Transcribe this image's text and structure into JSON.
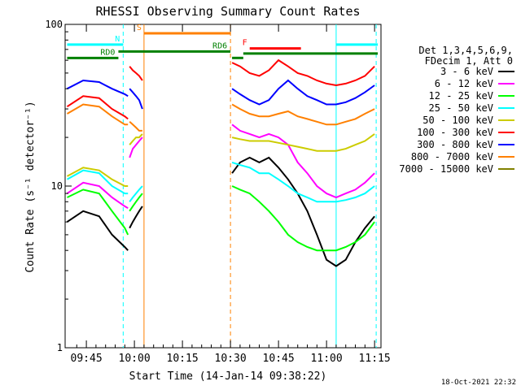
{
  "chart_data": {
    "type": "line",
    "title": "RHESSI Observing Summary Count Rates",
    "xlabel": "Start Time (14-Jan-14 09:38:22)",
    "ylabel": "Count Rate (s⁻¹ detector⁻¹)",
    "yscale": "log",
    "ylim": [
      1,
      100
    ],
    "xlim": [
      "09:38:22",
      "11:17:00"
    ],
    "ytick_labels": [
      "1",
      "10",
      "100"
    ],
    "xtick_labels": [
      "09:45",
      "10:00",
      "10:15",
      "10:30",
      "10:45",
      "11:00",
      "11:15"
    ],
    "x_ticks_min": [
      585,
      600,
      615,
      630,
      645,
      660,
      675
    ],
    "detector_info": [
      "Det 1,3,4,5,6,9,",
      "FDecim 1, Att 0"
    ],
    "timestamp": "18-Oct-2021 22:32",
    "legend": [
      {
        "label": "3 - 6 keV",
        "color": "#000000"
      },
      {
        "label": "6 - 12 keV",
        "color": "#ff00ff"
      },
      {
        "label": "12 - 25 keV",
        "color": "#00ff00"
      },
      {
        "label": "25 - 50 keV",
        "color": "#00ffff"
      },
      {
        "label": "50 - 100 keV",
        "color": "#cccc00"
      },
      {
        "label": "100 - 300 keV",
        "color": "#ff0000"
      },
      {
        "label": "300 - 800 keV",
        "color": "#0000ff"
      },
      {
        "label": "800 - 7000 keV",
        "color": "#ff8000"
      },
      {
        "label": "7000 - 15000 keV",
        "color": "#808000"
      }
    ],
    "segments": [
      {
        "x": [
          579,
          584,
          589,
          593,
          597,
          598
        ],
        "series": {
          "3 - 6 keV": [
            6.0,
            7.0,
            6.5,
            5.0,
            4.2,
            4.0
          ],
          "6 - 12 keV": [
            9.0,
            10.5,
            10.0,
            8.5,
            7.5,
            7.3
          ],
          "12 - 25 keV": [
            8.5,
            9.5,
            9.0,
            7.0,
            5.5,
            5.0
          ],
          "25 - 50 keV": [
            11.0,
            12.5,
            12.0,
            10.0,
            9.0,
            9.0
          ],
          "50 - 100 keV": [
            11.5,
            13.0,
            12.5,
            11.0,
            10.0,
            10.0
          ],
          "100 - 300 keV": [
            31,
            36,
            35,
            30,
            27,
            26
          ],
          "300 - 800 keV": [
            40,
            45,
            44,
            40,
            37,
            36
          ],
          "800 - 7000 keV": [
            28,
            32,
            31,
            27,
            24,
            24
          ]
        }
      },
      {
        "x": [
          598.5,
          599.5,
          600.5,
          601.5,
          602.5
        ],
        "series": {
          "3 - 6 keV": [
            5.5,
            6.0,
            6.5,
            7.0,
            7.5
          ],
          "6 - 12 keV": [
            15,
            17,
            18,
            19,
            20
          ],
          "12 - 25 keV": [
            7.0,
            7.5,
            8.0,
            8.5,
            9.0
          ],
          "25 - 50 keV": [
            8.0,
            8.5,
            9.0,
            9.5,
            10.0
          ],
          "50 - 100 keV": [
            18,
            19,
            20,
            20,
            21
          ],
          "100 - 300 keV": [
            55,
            52,
            50,
            48,
            45
          ],
          "300 - 800 keV": [
            40,
            38,
            36,
            34,
            30
          ],
          "800 - 7000 keV": [
            25,
            24,
            23,
            22,
            22
          ]
        }
      },
      {
        "x": [
          630.5,
          633,
          636,
          639,
          642,
          645,
          648,
          651,
          654,
          657,
          660,
          663,
          666,
          669,
          672,
          675
        ],
        "series": {
          "3 - 6 keV": [
            12,
            14,
            15,
            14,
            15,
            13,
            11,
            9,
            7,
            5,
            3.5,
            3.2,
            3.5,
            4.5,
            5.5,
            6.5
          ],
          "6 - 12 keV": [
            24,
            22,
            21,
            20,
            21,
            20,
            18,
            14,
            12,
            10,
            9.0,
            8.5,
            9.0,
            9.5,
            10.5,
            12.0
          ],
          "12 - 25 keV": [
            10,
            9.5,
            9.0,
            8.0,
            7.0,
            6.0,
            5.0,
            4.5,
            4.2,
            4.0,
            4.0,
            4.0,
            4.2,
            4.5,
            5.0,
            6.0
          ],
          "25 - 50 keV": [
            14,
            13.5,
            13,
            12,
            12,
            11,
            10,
            9,
            8.5,
            8.0,
            8.0,
            8.0,
            8.2,
            8.5,
            9.0,
            10.0
          ],
          "50 - 100 keV": [
            20,
            19.5,
            19,
            19,
            19,
            18.5,
            18,
            17.5,
            17,
            16.5,
            16.5,
            16.5,
            17,
            18,
            19,
            21
          ],
          "100 - 300 keV": [
            58,
            55,
            50,
            48,
            52,
            60,
            55,
            50,
            48,
            45,
            43,
            42,
            43,
            45,
            48,
            55
          ],
          "300 - 800 keV": [
            40,
            37,
            34,
            32,
            34,
            40,
            45,
            40,
            36,
            34,
            32,
            32,
            33,
            35,
            38,
            42
          ],
          "800 - 7000 keV": [
            32,
            30,
            28,
            27,
            27,
            28,
            29,
            27,
            26,
            25,
            24,
            24,
            25,
            26,
            28,
            30
          ]
        }
      }
    ],
    "state_bars": [
      {
        "label": "N",
        "color": "#00ffff",
        "y": 75,
        "x_start": 579,
        "x_end": 596.5
      },
      {
        "label": "",
        "color": "#00ffff",
        "y": 75,
        "x_start": 663,
        "x_end": 676
      },
      {
        "label": "S",
        "color": "#ff8000",
        "y": 88,
        "x_start": 603,
        "x_end": 630
      },
      {
        "label": "RD0",
        "color": "#008000",
        "y": 62,
        "x_start": 579,
        "x_end": 595
      },
      {
        "label": "RD6",
        "color": "#008000",
        "y": 68,
        "x_start": 595,
        "x_end": 630
      },
      {
        "label": "",
        "color": "#008000",
        "y": 62,
        "x_start": 630.5,
        "x_end": 634
      },
      {
        "label": "",
        "color": "#008000",
        "y": 66,
        "x_start": 634,
        "x_end": 676
      },
      {
        "label": "F",
        "color": "#ff0000",
        "y": 71,
        "x_start": 636,
        "x_end": 652
      }
    ],
    "vlines": [
      {
        "x": 596.5,
        "color": "#00ffff",
        "style": "dashed"
      },
      {
        "x": 603,
        "color": "#ff8000",
        "style": "solid"
      },
      {
        "x": 630,
        "color": "#ff8000",
        "style": "dashed"
      },
      {
        "x": 663,
        "color": "#00ffff",
        "style": "solid"
      },
      {
        "x": 675.5,
        "color": "#00ffff",
        "style": "dashed"
      }
    ],
    "grid": false
  }
}
